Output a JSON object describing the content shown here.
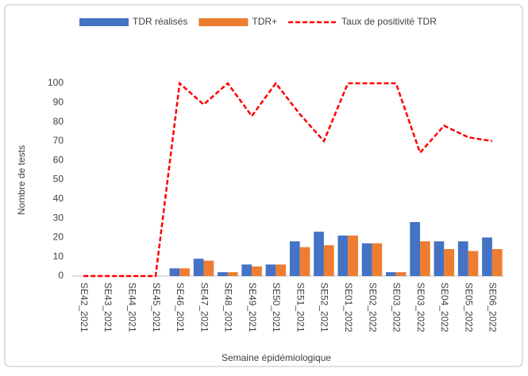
{
  "chart_data": {
    "type": "bar_line",
    "x_label": "Semaine épidémiologique",
    "y_label": "Nombre de tests",
    "categories": [
      "SE42_2021",
      "SE43_2021",
      "SE44_2021",
      "SE45_2021",
      "SE46_2021",
      "SE47_2021",
      "SE48_2021",
      "SE49_2021",
      "SE50_2021",
      "SE51_2021",
      "SE52_2021",
      "SE01_2022",
      "SE02_2022",
      "SE03_2022",
      "SE03_2022",
      "SE04_2022",
      "SE05_2022",
      "SE06_2022"
    ],
    "series": [
      {
        "name": "TDR réalisés",
        "type": "bar",
        "color": "#4472c4",
        "values": [
          0,
          0,
          0,
          0,
          4,
          9,
          2,
          6,
          6,
          18,
          23,
          21,
          17,
          2,
          28,
          18,
          18,
          20
        ]
      },
      {
        "name": "TDR+",
        "type": "bar",
        "color": "#ed7d31",
        "values": [
          0,
          0,
          0,
          0,
          4,
          8,
          2,
          5,
          6,
          15,
          16,
          21,
          17,
          2,
          18,
          14,
          13,
          14
        ]
      },
      {
        "name": "Taux de positivité TDR",
        "type": "line",
        "dashed": true,
        "color": "#ff0000",
        "values": [
          0,
          0,
          0,
          0,
          100,
          89,
          100,
          83,
          100,
          84,
          70,
          100,
          100,
          100,
          64,
          78,
          72,
          70
        ]
      }
    ],
    "ylim": [
      0,
      100
    ],
    "yticks": [
      0,
      10,
      20,
      30,
      40,
      50,
      60,
      70,
      80,
      90,
      100
    ],
    "grid": false,
    "legend": "top"
  }
}
